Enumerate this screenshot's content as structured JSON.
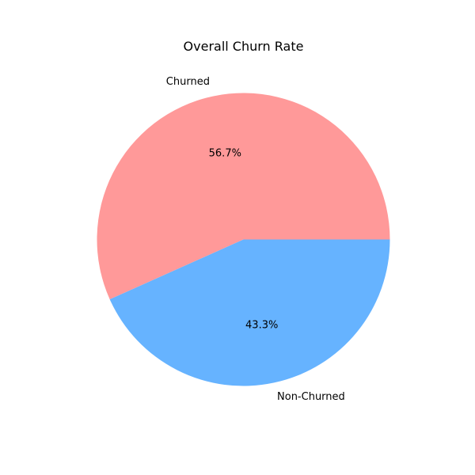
{
  "chart_data": {
    "type": "pie",
    "title": "Overall Churn Rate",
    "slices": [
      {
        "label": "Churned",
        "value": 56.7,
        "pct_text": "56.7%",
        "color": "#ff9999"
      },
      {
        "label": "Non-Churned",
        "value": 43.3,
        "pct_text": "43.3%",
        "color": "#66b3ff"
      }
    ],
    "start_angle_deg": 0,
    "direction": "counterclockwise"
  }
}
